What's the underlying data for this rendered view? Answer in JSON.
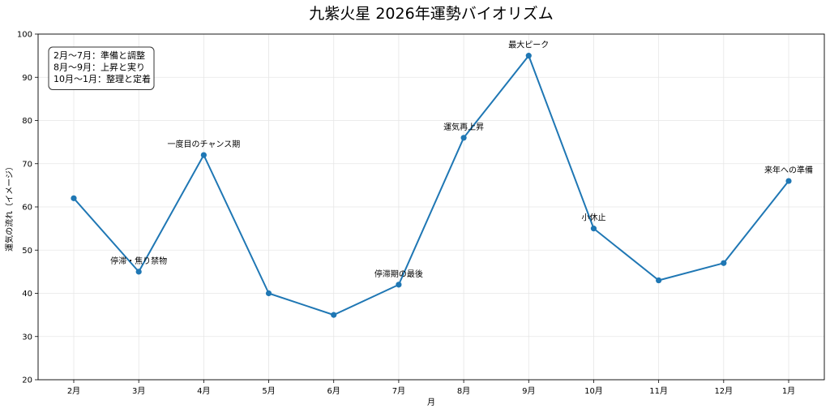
{
  "chart_data": {
    "type": "line",
    "title": "九紫火星 2026年運勢バイオリズム",
    "xlabel": "月",
    "ylabel": "運気の流れ（イメージ）",
    "categories": [
      "2月",
      "3月",
      "4月",
      "5月",
      "6月",
      "7月",
      "8月",
      "9月",
      "10月",
      "11月",
      "12月",
      "1月"
    ],
    "series": [
      {
        "values": [
          62,
          45,
          72,
          40,
          35,
          42,
          76,
          95,
          55,
          43,
          47,
          66
        ]
      }
    ],
    "ylim": [
      20,
      100
    ],
    "yticks": [
      20,
      30,
      40,
      50,
      60,
      70,
      80,
      90,
      100
    ],
    "grid": true,
    "annotations": [
      {
        "category": "3月",
        "value": 45,
        "text": "停滞・焦り禁物"
      },
      {
        "category": "4月",
        "value": 72,
        "text": "一度目のチャンス期"
      },
      {
        "category": "7月",
        "value": 42,
        "text": "停滞期の最後"
      },
      {
        "category": "8月",
        "value": 76,
        "text": "運気再上昇"
      },
      {
        "category": "9月",
        "value": 95,
        "text": "最大ピーク"
      },
      {
        "category": "10月",
        "value": 55,
        "text": "小休止"
      },
      {
        "category": "1月",
        "value": 66,
        "text": "来年への準備"
      }
    ],
    "text_box": {
      "lines": [
        "2月〜7月：準備と調整",
        "8月〜9月：上昇と実り",
        "10月〜1月：整理と定着"
      ],
      "placement": "top-left"
    },
    "colors": {
      "line": "#1f77b4",
      "grid": "#e6e6e6"
    }
  }
}
